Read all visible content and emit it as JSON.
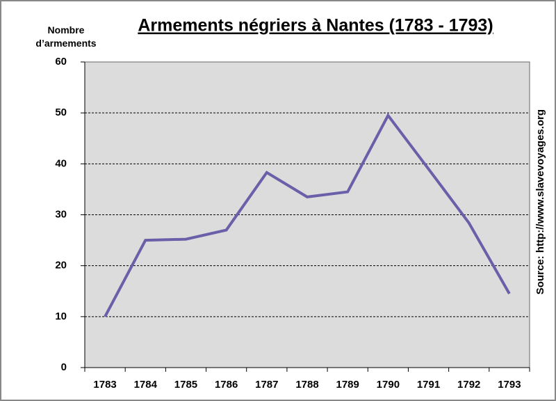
{
  "chart_data": {
    "type": "line",
    "title": "Armements négriers à Nantes (1783 - 1793)",
    "y_label": "Nombre d’armements",
    "source": "Source: http://www.slavevoyages.org",
    "categories": [
      "1783",
      "1784",
      "1785",
      "1786",
      "1787",
      "1788",
      "1789",
      "1790",
      "1791",
      "1792",
      "1793"
    ],
    "series": [
      {
        "name": "Armements",
        "color": "#6a60a9",
        "values": [
          10,
          25,
          25.2,
          27,
          38.3,
          33.5,
          34.5,
          49.5,
          39,
          28.4,
          14.5
        ]
      }
    ],
    "ylim": [
      0,
      60
    ],
    "yticks": [
      0,
      10,
      20,
      30,
      40,
      50,
      60
    ],
    "grid": true,
    "plot_background": "#dcdcdc"
  }
}
